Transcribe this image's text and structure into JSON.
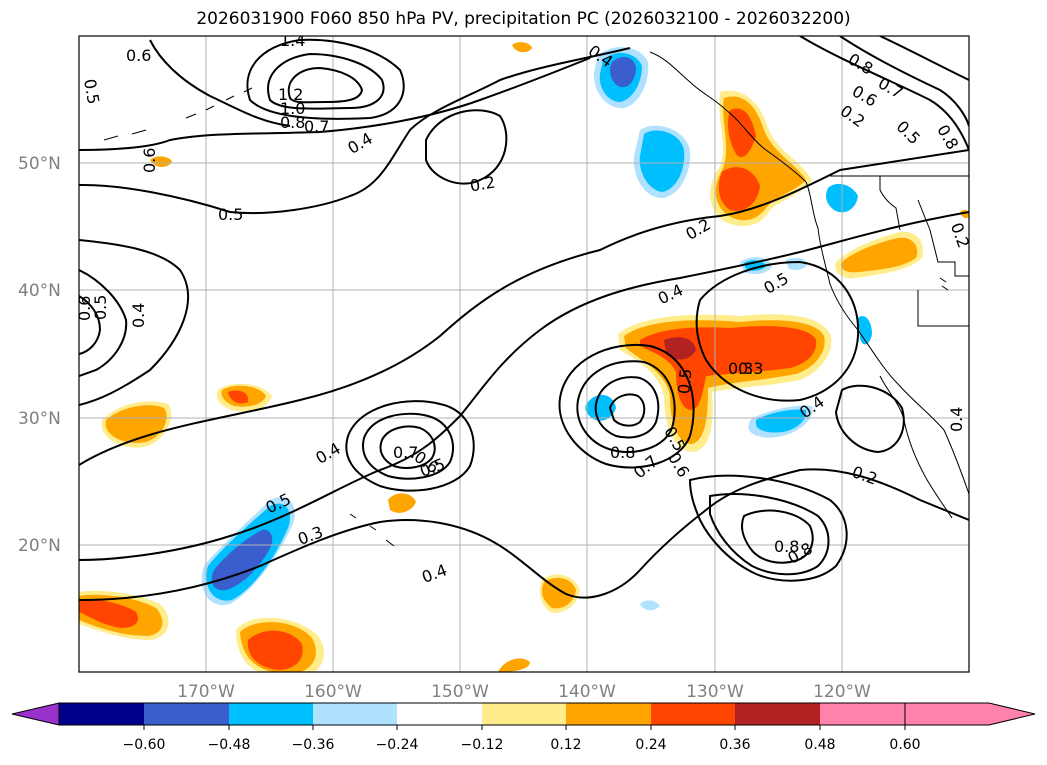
{
  "title": "2026031900 F060 850 hPa PV, precipitation PC (2026032100 - 2026032200)",
  "map": {
    "lat_labels": [
      "50°N",
      "40°N",
      "30°N",
      "20°N"
    ],
    "lon_labels": [
      "170°W",
      "160°W",
      "150°W",
      "140°W",
      "130°W",
      "120°W"
    ],
    "pv_contour_labels": [
      "0.6",
      "1.4",
      "1.2",
      "1.0",
      "0.8",
      "0.7",
      "0.5",
      "0.6",
      "0.4",
      "0.2",
      "0.5",
      "0.6",
      "0.5",
      "0.4",
      "0.4",
      "0.5",
      "0.8",
      "0.7",
      "0.6",
      "0.8",
      "0.5",
      "0.2",
      "0.4",
      "0.2",
      "0.4",
      "0.5",
      "0.3",
      "0.4",
      "0.7",
      "0.6",
      "0.5",
      "0.5",
      "0.3",
      "0.8",
      "0.7",
      "0.6",
      "0.5",
      "0.8",
      "0.8",
      "0.3",
      "0.4",
      "0.2",
      "0.4",
      "0.2"
    ]
  },
  "colorbar": {
    "ticks": [
      "−0.60",
      "−0.48",
      "−0.36",
      "−0.24",
      "−0.12",
      "0.12",
      "0.24",
      "0.36",
      "0.48",
      "0.60"
    ],
    "colors": [
      "#9932cc",
      "#00008b",
      "#3a5fcd",
      "#00bfff",
      "#b0e2ff",
      "#ffffff",
      "#ffec8b",
      "#ffa500",
      "#ff4500",
      "#b22222",
      "#ff82ab"
    ]
  }
}
